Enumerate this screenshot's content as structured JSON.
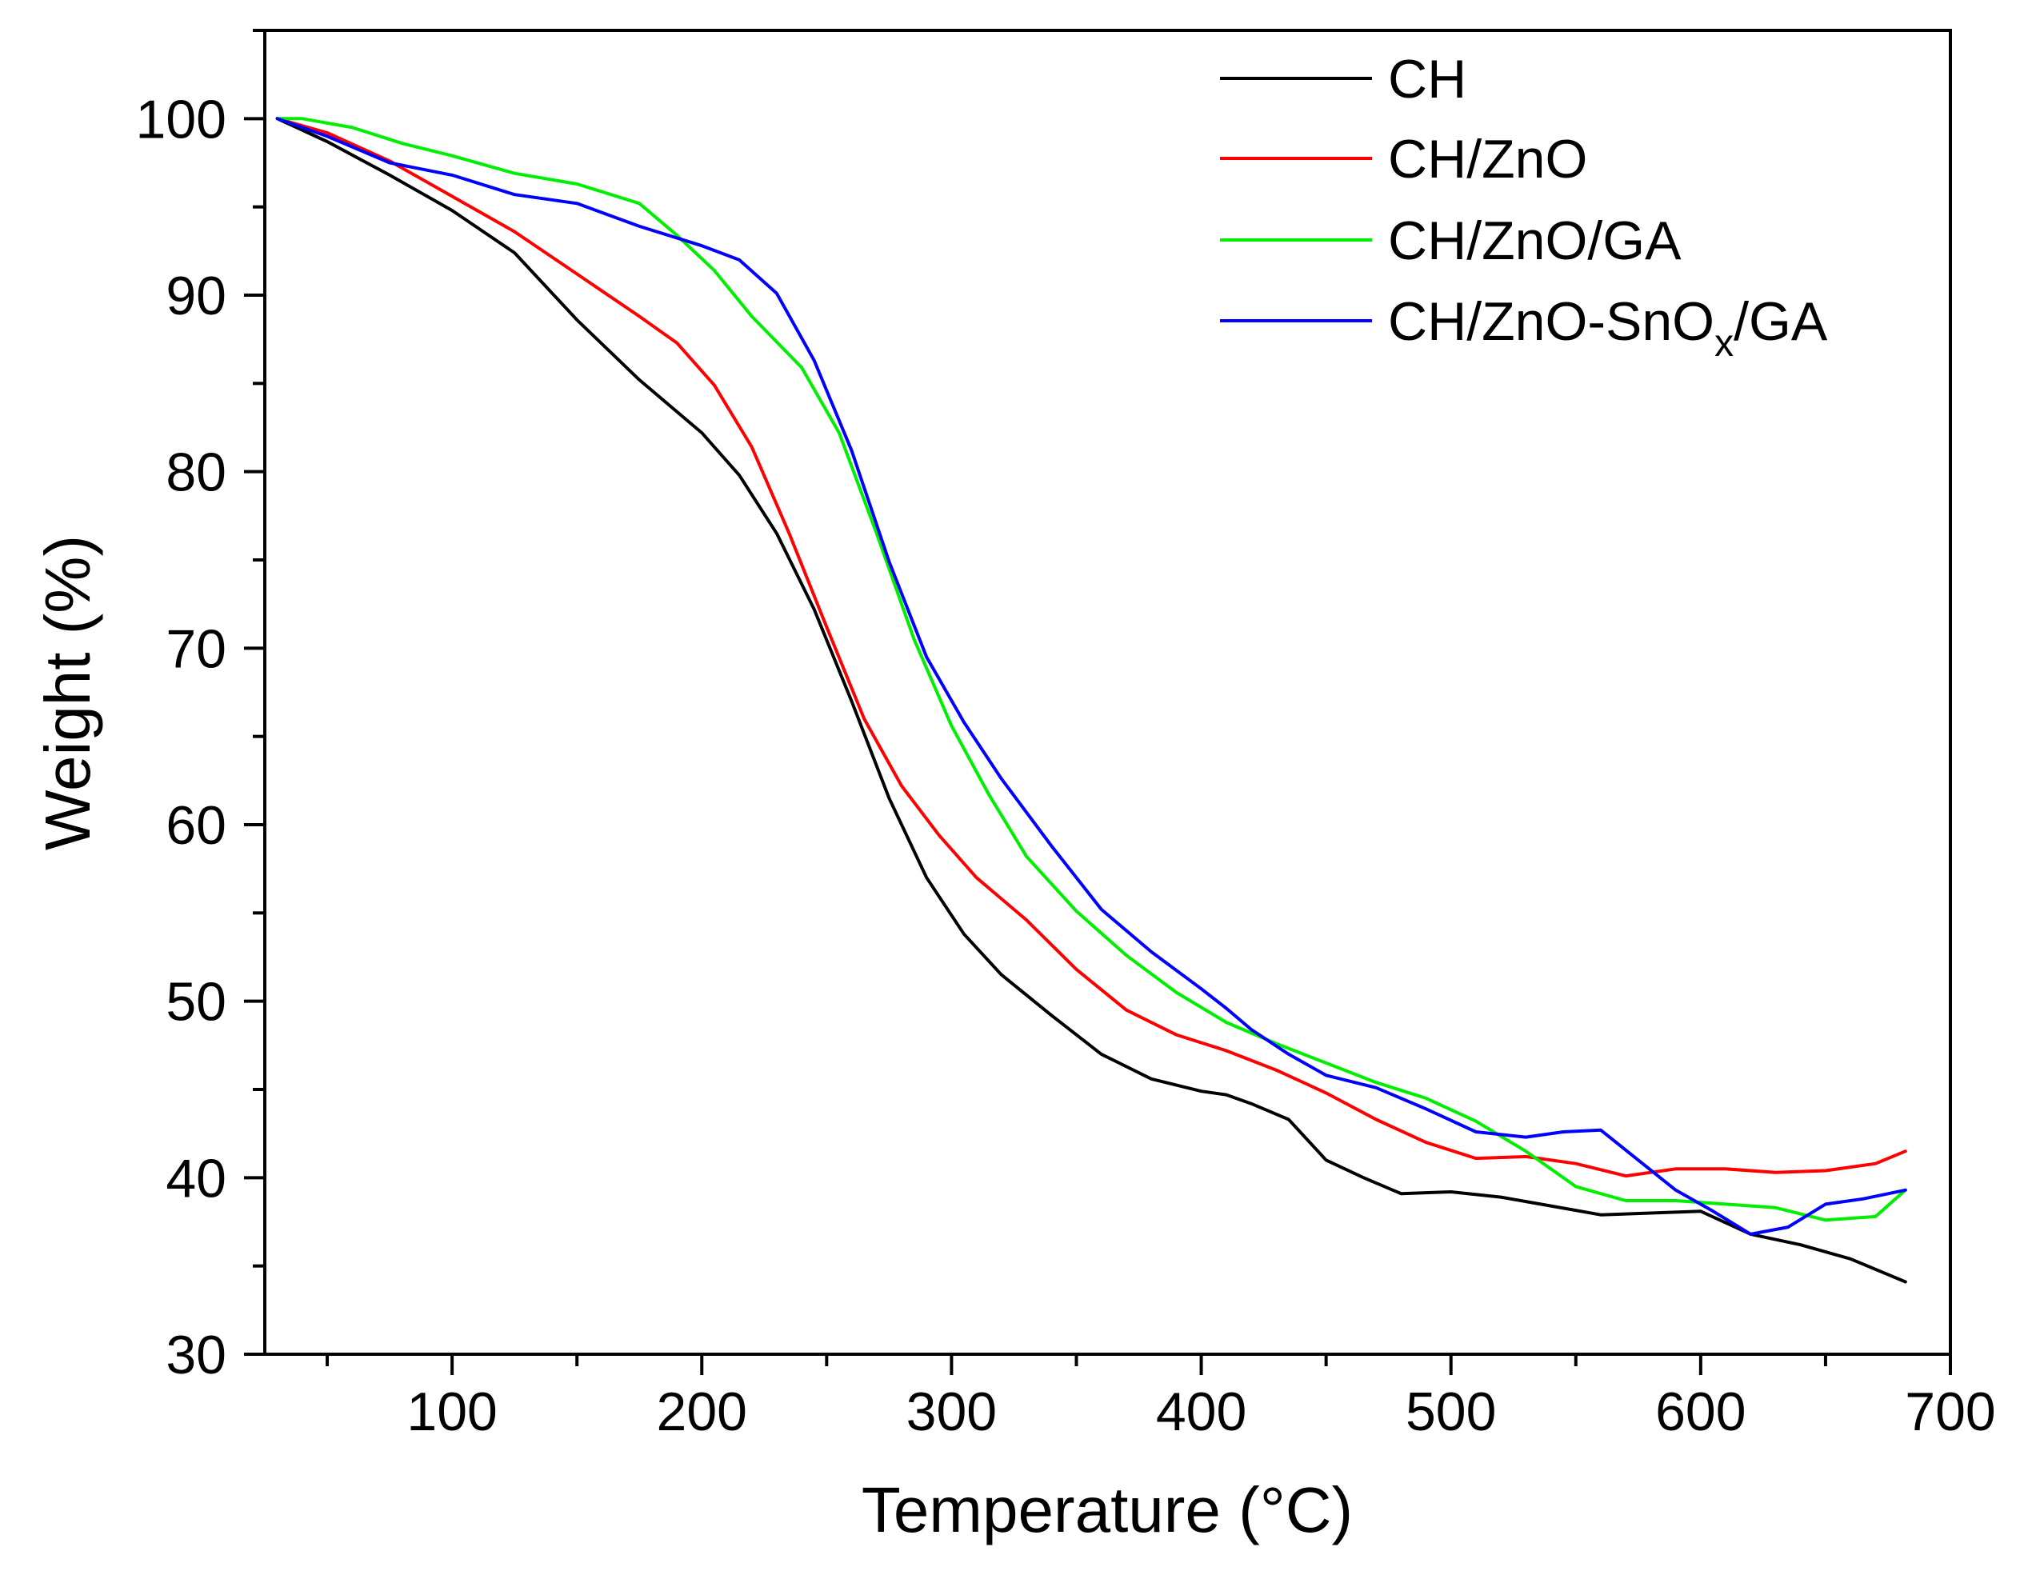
{
  "chart_data": {
    "type": "line",
    "xlabel": "Temperature (°C)",
    "ylabel": "Weight (%)",
    "xlim": [
      25,
      700
    ],
    "ylim": [
      30,
      105
    ],
    "xticks": [
      100,
      200,
      300,
      400,
      500,
      600,
      700
    ],
    "yticks": [
      30,
      40,
      50,
      60,
      70,
      80,
      90,
      100
    ],
    "xtick_labels": [
      "100",
      "200",
      "300",
      "400",
      "500",
      "600",
      "700"
    ],
    "ytick_labels": [
      "30",
      "40",
      "50",
      "60",
      "70",
      "80",
      "90",
      "100"
    ],
    "grid": false,
    "legend_position": "top-right",
    "series": [
      {
        "name": "CH",
        "color": "#000000",
        "x": [
          30,
          50,
          75,
          100,
          125,
          150,
          175,
          200,
          215,
          230,
          245,
          260,
          275,
          290,
          305,
          320,
          340,
          360,
          380,
          400,
          410,
          420,
          435,
          450,
          465,
          480,
          500,
          520,
          540,
          560,
          580,
          600,
          620,
          640,
          660,
          682
        ],
        "y": [
          100,
          98.7,
          96.8,
          94.8,
          92.4,
          88.6,
          85.2,
          82.2,
          79.8,
          76.5,
          72.2,
          67.0,
          61.5,
          57.0,
          53.8,
          51.5,
          49.2,
          47.0,
          45.6,
          44.9,
          44.7,
          44.2,
          43.3,
          41.0,
          40.0,
          39.1,
          39.2,
          38.9,
          38.4,
          37.9,
          38.0,
          38.1,
          36.8,
          36.2,
          35.4,
          34.1
        ]
      },
      {
        "name": "CH/ZnO",
        "color": "#ff0000",
        "x": [
          30,
          50,
          75,
          100,
          125,
          150,
          175,
          190,
          205,
          220,
          235,
          250,
          265,
          280,
          295,
          310,
          330,
          350,
          370,
          390,
          410,
          430,
          450,
          470,
          490,
          510,
          530,
          550,
          570,
          590,
          610,
          630,
          650,
          670,
          682
        ],
        "y": [
          100,
          99.2,
          97.6,
          95.6,
          93.6,
          91.2,
          88.8,
          87.3,
          84.9,
          81.4,
          76.5,
          71.2,
          66.0,
          62.2,
          59.4,
          57.0,
          54.6,
          51.8,
          49.5,
          48.1,
          47.2,
          46.1,
          44.8,
          43.3,
          42.0,
          41.1,
          41.2,
          40.8,
          40.1,
          40.5,
          40.5,
          40.3,
          40.4,
          40.8,
          41.5
        ]
      },
      {
        "name": "CH/ZnO/GA",
        "color": "#00ee00",
        "x": [
          30,
          40,
          60,
          80,
          100,
          125,
          150,
          175,
          190,
          205,
          220,
          240,
          255,
          270,
          285,
          300,
          315,
          330,
          350,
          370,
          390,
          410,
          430,
          450,
          470,
          490,
          510,
          530,
          550,
          570,
          590,
          610,
          630,
          650,
          670,
          682
        ],
        "y": [
          100,
          100.0,
          99.5,
          98.6,
          97.9,
          96.9,
          96.3,
          95.2,
          93.4,
          91.4,
          88.8,
          85.9,
          82.2,
          76.5,
          70.5,
          65.6,
          61.7,
          58.2,
          55.1,
          52.6,
          50.5,
          48.8,
          47.6,
          46.5,
          45.4,
          44.5,
          43.2,
          41.5,
          39.5,
          38.7,
          38.7,
          38.5,
          38.3,
          37.6,
          37.8,
          39.3
        ]
      },
      {
        "name": "CH/ZnO-SnOx/GA",
        "color": "#0000ff",
        "x": [
          30,
          50,
          75,
          100,
          125,
          150,
          175,
          200,
          215,
          230,
          245,
          260,
          275,
          290,
          305,
          320,
          340,
          360,
          380,
          400,
          410,
          420,
          435,
          450,
          470,
          490,
          510,
          530,
          545,
          560,
          575,
          590,
          605,
          620,
          635,
          650,
          665,
          682
        ],
        "y": [
          100,
          99.0,
          97.5,
          96.8,
          95.7,
          95.2,
          93.9,
          92.8,
          92.0,
          90.1,
          86.3,
          81.2,
          74.9,
          69.5,
          65.8,
          62.6,
          58.8,
          55.2,
          52.8,
          50.7,
          49.6,
          48.4,
          47.0,
          45.8,
          45.1,
          43.9,
          42.6,
          42.3,
          42.6,
          42.7,
          41.0,
          39.3,
          38.1,
          36.8,
          37.2,
          38.5,
          38.8,
          39.3
        ]
      }
    ],
    "legend": [
      {
        "label": "CH/ZnO-SnO",
        "sub": "x",
        "suffix": "/GA"
      }
    ]
  },
  "legend_labels": {
    "s0": "CH",
    "s1": "CH/ZnO",
    "s2": "CH/ZnO/GA",
    "s3_main": "CH/ZnO-SnO",
    "s3_sub": "x",
    "s3_suffix": "/GA"
  }
}
